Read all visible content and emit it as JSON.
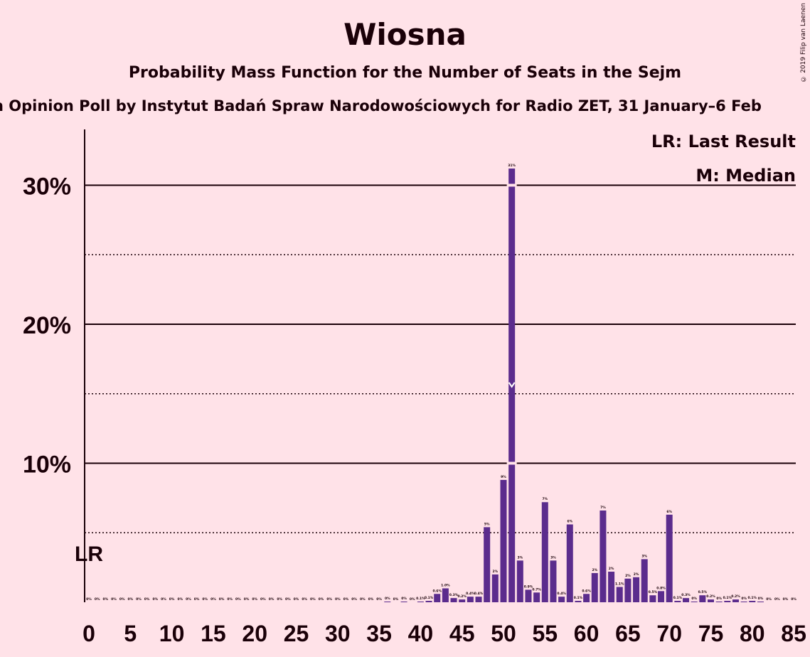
{
  "title": "Wiosna",
  "subtitle": "Probability Mass Function for the Number of Seats in the Sejm",
  "source": "n Opinion Poll by Instytut Badań Spraw Narodowościowych for Radio ZET, 31 January–6 Feb",
  "copyright": "© 2019 Filip van Laenen",
  "legend": {
    "lr": "LR: Last Result",
    "median": "M: Median"
  },
  "lr_marker": "LR",
  "median_marker": "M",
  "colors": {
    "bar": "#5B2C8D",
    "background": "#FFE2E8",
    "text": "#1A0008"
  },
  "chart_data": {
    "type": "bar",
    "title": "Wiosna",
    "xlabel": "",
    "ylabel": "",
    "ylim": [
      0,
      34
    ],
    "y_ticks": [
      10,
      20,
      30
    ],
    "y_tick_labels": [
      "10%",
      "20%",
      "30%"
    ],
    "x_ticks": [
      0,
      5,
      10,
      15,
      20,
      25,
      30,
      35,
      40,
      45,
      50,
      55,
      60,
      65,
      70,
      75,
      80,
      85
    ],
    "last_result": 0,
    "median": 51,
    "x": [
      0,
      1,
      2,
      3,
      4,
      5,
      6,
      7,
      8,
      9,
      10,
      11,
      12,
      13,
      14,
      15,
      16,
      17,
      18,
      19,
      20,
      21,
      22,
      23,
      24,
      25,
      26,
      27,
      28,
      29,
      30,
      31,
      32,
      33,
      34,
      35,
      36,
      37,
      38,
      39,
      40,
      41,
      42,
      43,
      44,
      45,
      46,
      47,
      48,
      49,
      50,
      51,
      52,
      53,
      54,
      55,
      56,
      57,
      58,
      59,
      60,
      61,
      62,
      63,
      64,
      65,
      66,
      67,
      68,
      69,
      70,
      71,
      72,
      73,
      74,
      75,
      76,
      77,
      78,
      79,
      80,
      81,
      82,
      83,
      84,
      85
    ],
    "values": [
      0,
      0,
      0,
      0,
      0,
      0,
      0,
      0,
      0,
      0,
      0,
      0,
      0,
      0,
      0,
      0,
      0,
      0,
      0,
      0,
      0,
      0,
      0,
      0,
      0,
      0,
      0,
      0,
      0,
      0,
      0,
      0,
      0,
      0,
      0,
      0,
      0.05,
      0,
      0.05,
      0,
      0.05,
      0.1,
      0.6,
      1.0,
      0.3,
      0.2,
      0.4,
      0.4,
      5.4,
      2.0,
      8.8,
      31.2,
      3.0,
      0.9,
      0.7,
      7.2,
      3.0,
      0.4,
      5.6,
      0.1,
      0.6,
      2.1,
      6.6,
      2.2,
      1.1,
      1.7,
      1.8,
      3.1,
      0.5,
      0.8,
      6.3,
      0.1,
      0.3,
      0.05,
      0.5,
      0.2,
      0.05,
      0.1,
      0.2,
      0.05,
      0.1,
      0.05,
      0,
      0,
      0,
      0
    ],
    "data_labels": [
      "0%",
      "0%",
      "0%",
      "0%",
      "0%",
      "0%",
      "0%",
      "0%",
      "0%",
      "0%",
      "0%",
      "0%",
      "0%",
      "0%",
      "0%",
      "0%",
      "0%",
      "0%",
      "0%",
      "0%",
      "0%",
      "0%",
      "0%",
      "0%",
      "0%",
      "0%",
      "0%",
      "0%",
      "0%",
      "0%",
      "0%",
      "0%",
      "0%",
      "0%",
      "0%",
      "0%",
      "0%",
      "0%",
      "0%",
      "0%",
      "0.1%",
      "0.1%",
      "0.6%",
      "1.0%",
      "0.3%",
      "0.2%",
      "0.4%",
      "0.4%",
      "5%",
      "2%",
      "9%",
      "31%",
      "3%",
      "0.9%",
      "0.7%",
      "7%",
      "3%",
      "0.4%",
      "6%",
      "0.1%",
      "0.6%",
      "2%",
      "7%",
      "2%",
      "1.1%",
      "2%",
      "2%",
      "3%",
      "0.5%",
      "0.8%",
      "6%",
      "0.1%",
      "0.3%",
      "0%",
      "0.5%",
      "0.2%",
      "0%",
      "0.1%",
      "0.2%",
      "0%",
      "0.1%",
      "0%",
      "0%",
      "0%",
      "0%",
      "0%"
    ]
  }
}
